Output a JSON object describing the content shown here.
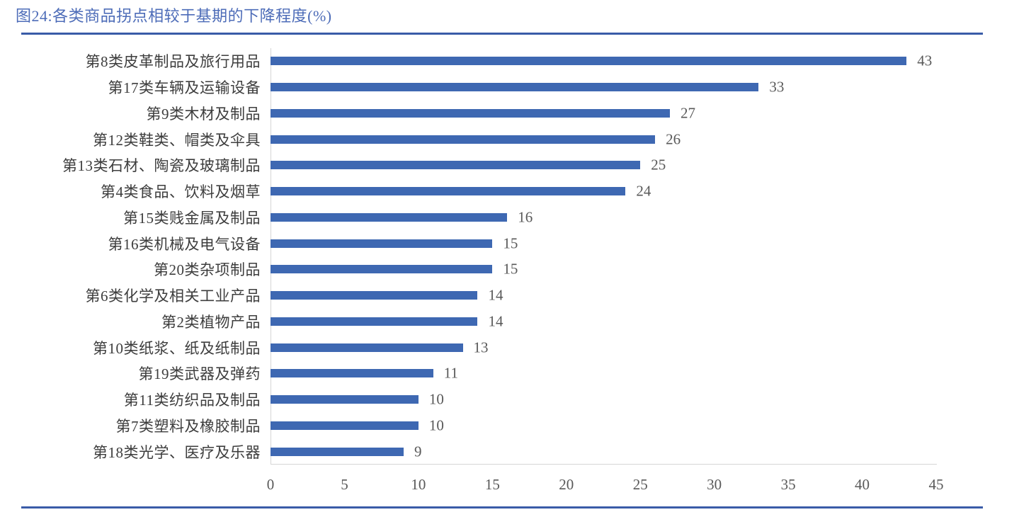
{
  "figure": {
    "title": "图24:各类商品拐点相较于基期的下降程度(%)"
  },
  "chart_data": {
    "type": "bar",
    "orientation": "horizontal",
    "title": "图24:各类商品拐点相较于基期的下降程度(%)",
    "categories": [
      "第8类皮革制品及旅行用品",
      "第17类车辆及运输设备",
      "第9类木材及制品",
      "第12类鞋类、帽类及伞具",
      "第13类石材、陶瓷及玻璃制品",
      "第4类食品、饮料及烟草",
      "第15类贱金属及制品",
      "第16类机械及电气设备",
      "第20类杂项制品",
      "第6类化学及相关工业产品",
      "第2类植物产品",
      "第10类纸浆、纸及纸制品",
      "第19类武器及弹药",
      "第11类纺织品及制品",
      "第7类塑料及橡胶制品",
      "第18类光学、医疗及乐器"
    ],
    "values": [
      43,
      33,
      27,
      26,
      25,
      24,
      16,
      15,
      15,
      14,
      14,
      13,
      11,
      10,
      10,
      9
    ],
    "xlabel": "",
    "ylabel": "",
    "xlim": [
      0,
      45
    ],
    "x_ticks": [
      0,
      5,
      10,
      15,
      20,
      25,
      30,
      35,
      40,
      45
    ],
    "grid": "off",
    "legend": "none",
    "value_labels_shown": true
  },
  "colors": {
    "bar": "#3e68b2",
    "title_text": "#4d6cb8",
    "divider": "#3a5ca8",
    "category_text": "#3d3d3d",
    "value_text": "#595959",
    "axis_line": "#d5d5d5"
  }
}
